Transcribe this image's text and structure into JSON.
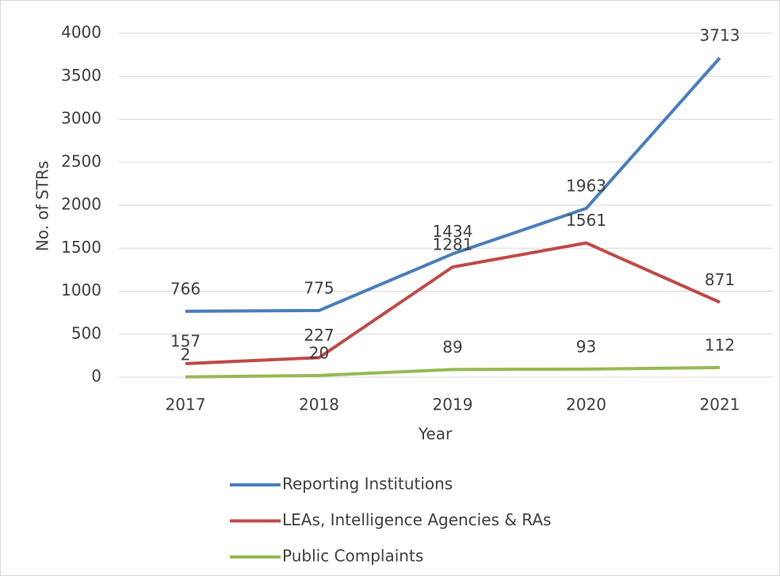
{
  "chart_data": {
    "type": "line",
    "x_label": "Year",
    "y_label": "No. of STRs",
    "categories": [
      "2017",
      "2018",
      "2019",
      "2020",
      "2021"
    ],
    "series": [
      {
        "name": "Reporting Institutions",
        "color": "#4a7ebb",
        "values": [
          766,
          775,
          1434,
          1963,
          3713
        ]
      },
      {
        "name": "LEAs, Intelligence Agencies & RAs",
        "color": "#be4b48",
        "values": [
          157,
          227,
          1281,
          1561,
          871
        ]
      },
      {
        "name": "Public Complaints",
        "color": "#98b954",
        "values": [
          2,
          20,
          89,
          93,
          112
        ]
      }
    ],
    "ylim": [
      0,
      4000
    ],
    "yticks": [
      0,
      500,
      1000,
      1500,
      2000,
      2500,
      3000,
      3500,
      4000
    ],
    "grid": true,
    "legend": "bottom"
  }
}
